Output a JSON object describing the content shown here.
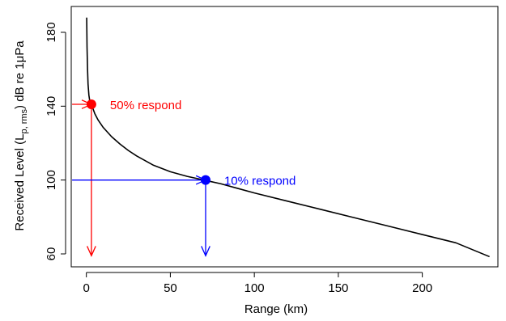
{
  "chart_data": {
    "type": "line",
    "xlabel": "Range (km)",
    "ylabel": {
      "prefix": "Received Level (L",
      "subscript": "p, rms",
      "suffix": ") dB re 1",
      "mu": "μ",
      "unit": "Pa"
    },
    "xlim": [
      -9,
      245
    ],
    "ylim": [
      53,
      194
    ],
    "xticks": [
      0,
      50,
      100,
      150,
      200
    ],
    "yticks": [
      60,
      100,
      140,
      180
    ],
    "grid": false,
    "series": [
      {
        "color": "#000000",
        "x": [
          0.2,
          0.4,
          0.7,
          1.0,
          1.5,
          2.0,
          3.0,
          4.0,
          5.0,
          7.0,
          10.0,
          15.0,
          20.0,
          25.0,
          30.0,
          40.0,
          50.0,
          60.0,
          70.0,
          80.0,
          90.0,
          100.0,
          120.0,
          140.0,
          160.0,
          180.0,
          200.0,
          220.0,
          240.0
        ],
        "y": [
          188,
          172,
          160,
          152,
          146,
          143,
          141,
          138.5,
          136,
          132.5,
          128.5,
          123.5,
          119.5,
          116,
          113,
          108,
          104.5,
          102,
          100,
          98,
          95.5,
          93,
          88.5,
          84,
          79.5,
          75,
          70.5,
          66,
          58.5
        ]
      }
    ],
    "points": [
      {
        "x": 3,
        "y": 141,
        "color": "#ff0000",
        "label": "50% respond"
      },
      {
        "x": 71,
        "y": 100,
        "color": "#0000ff",
        "label": "10% respond"
      }
    ],
    "arrows": [
      {
        "color": "#ff0000",
        "from": [
          -8.5,
          141
        ],
        "to": [
          3,
          141
        ]
      },
      {
        "color": "#ff0000",
        "from": [
          3,
          141
        ],
        "to": [
          3,
          59
        ]
      },
      {
        "color": "#0000ff",
        "from": [
          -8.5,
          100
        ],
        "to": [
          71,
          100
        ]
      },
      {
        "color": "#0000ff",
        "from": [
          71,
          100
        ],
        "to": [
          71,
          59
        ]
      }
    ]
  }
}
